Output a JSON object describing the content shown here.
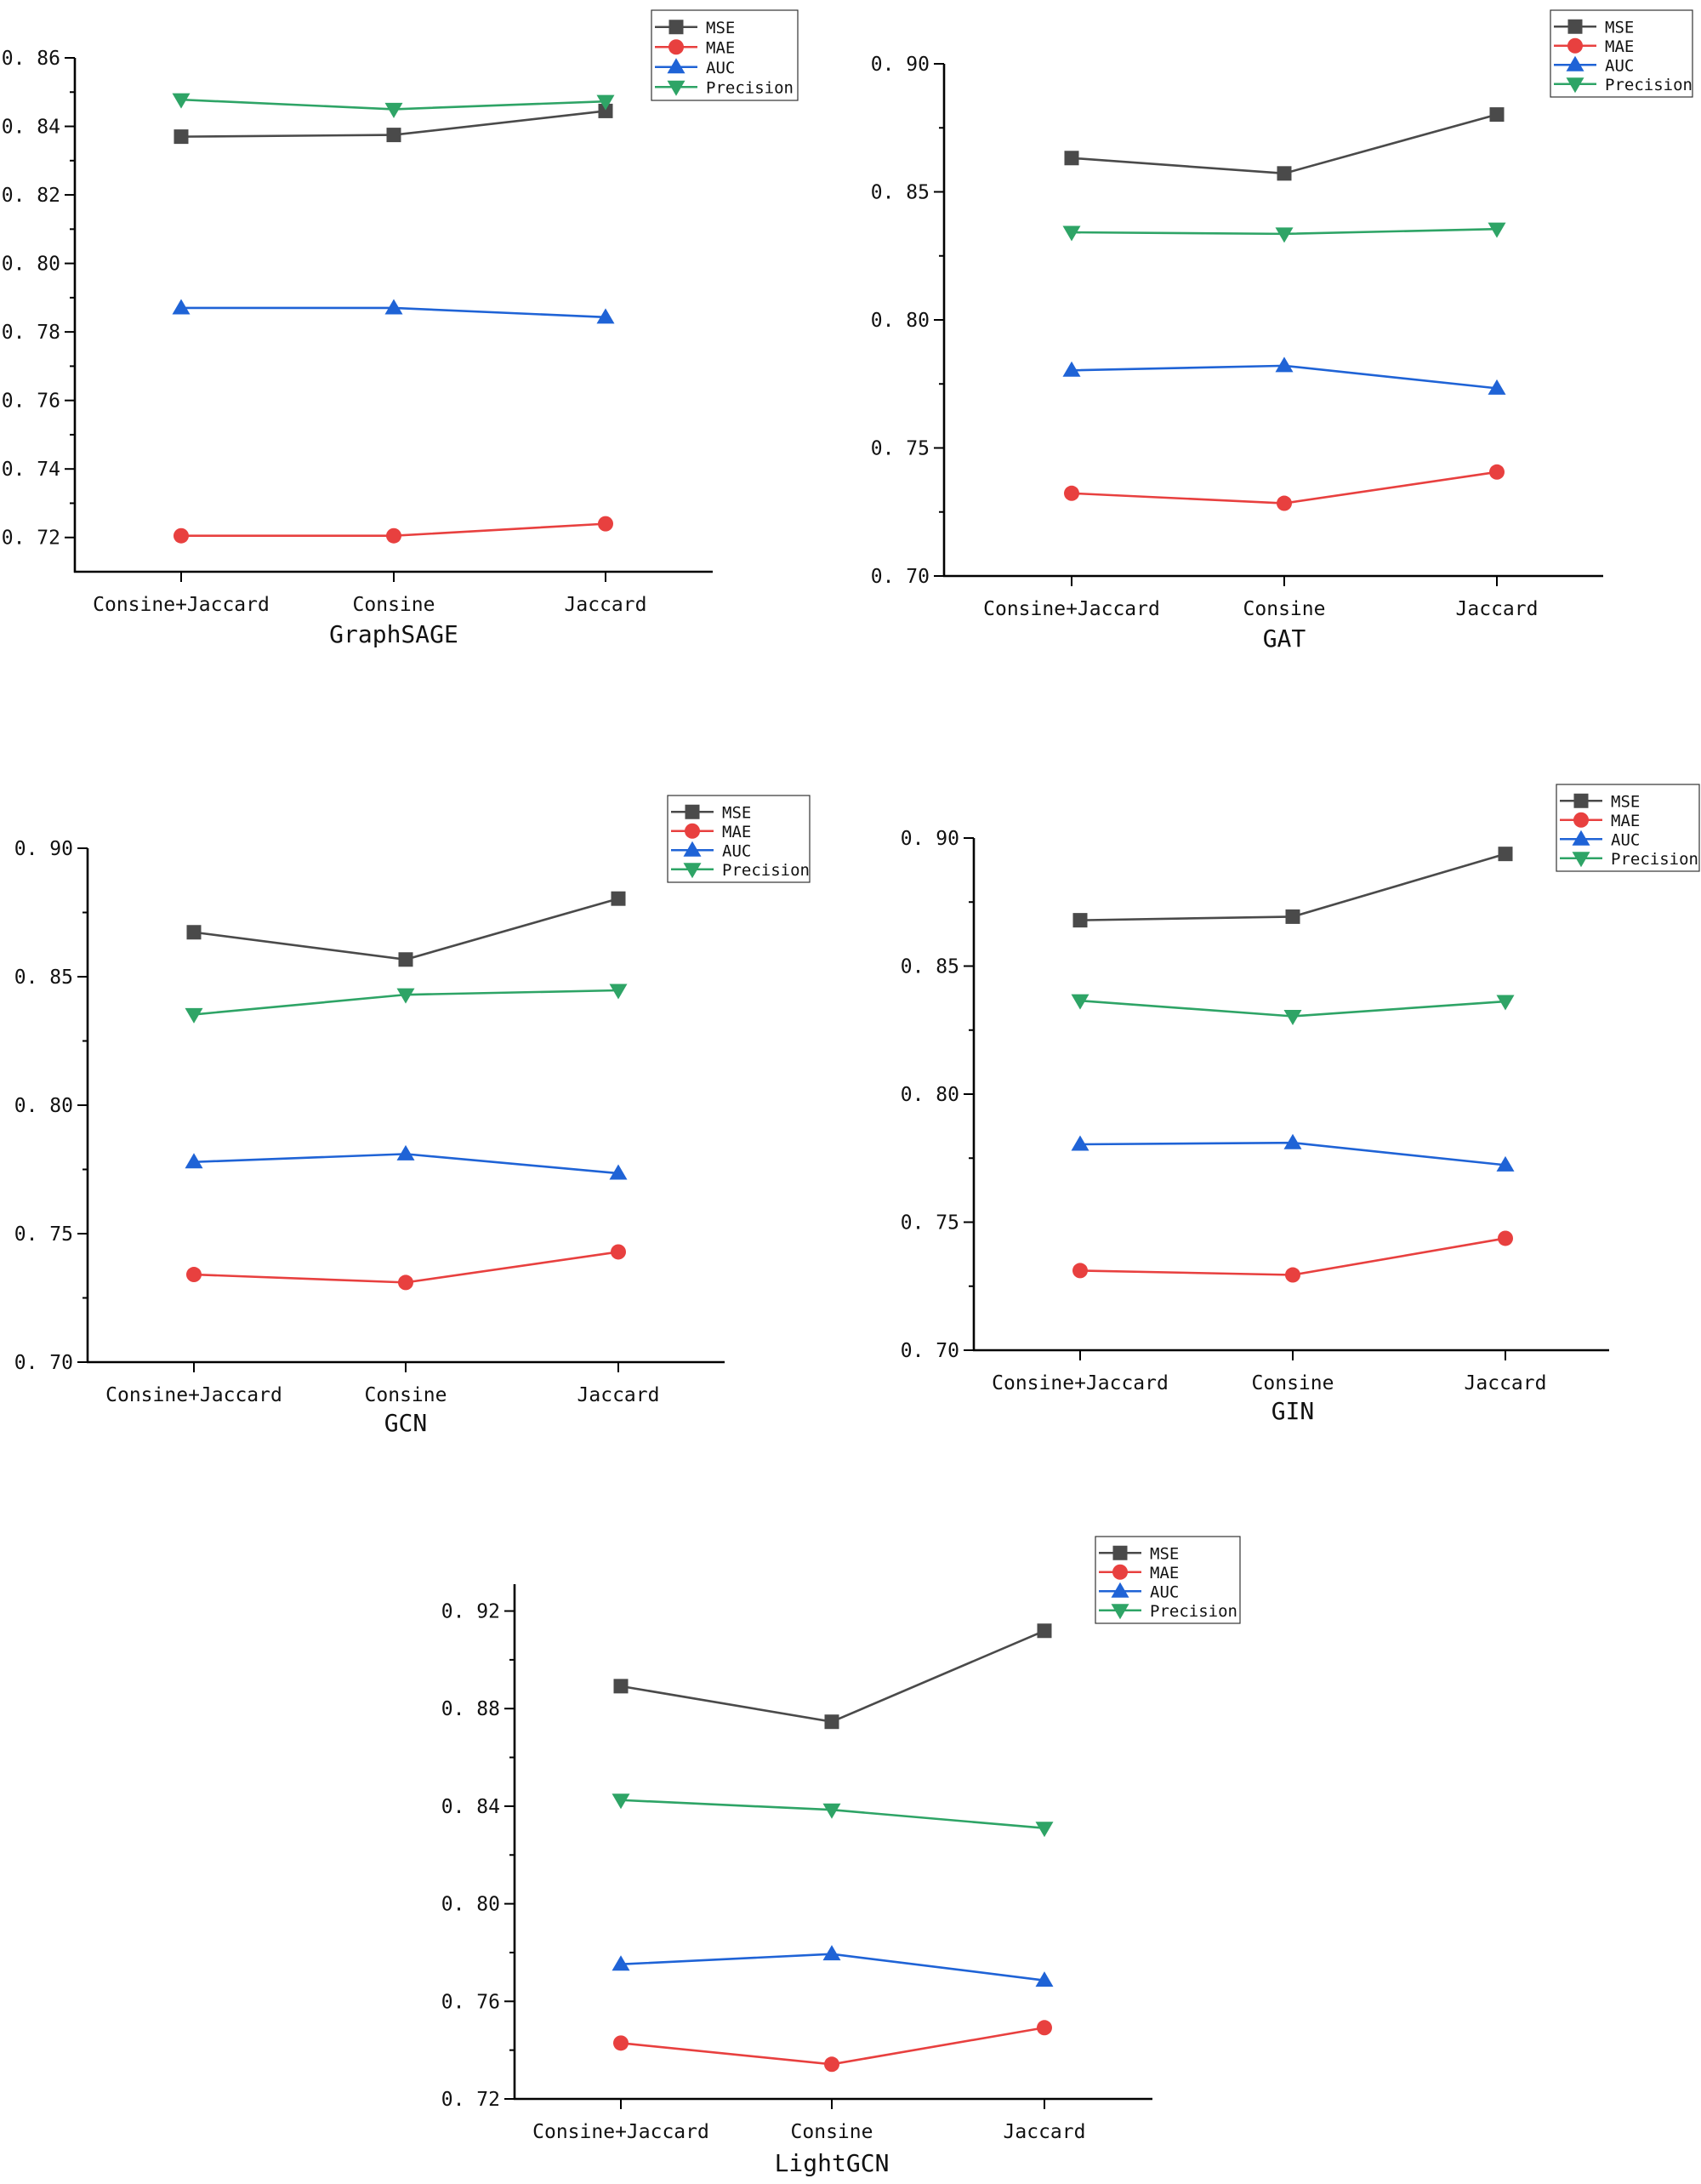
{
  "chart_data": [
    {
      "type": "line",
      "title": "GraphSAGE",
      "xlabel": "GraphSAGE",
      "ylabel": "",
      "categories": [
        "Consine+Jaccard",
        "Consine",
        "Jaccard"
      ],
      "ylim": [
        0.71,
        0.86
      ],
      "yticks": [
        0.72,
        0.74,
        0.76,
        0.78,
        0.8,
        0.82,
        0.84,
        0.86
      ],
      "ytick_labels": [
        "0. 72",
        "0. 74",
        "0. 76",
        "0. 78",
        "0. 80",
        "0. 82",
        "0. 84",
        "0. 86"
      ],
      "minor_ticks": true,
      "grid": false,
      "legend_position": "top-right",
      "series": [
        {
          "name": "MSE",
          "marker": "square",
          "color": "#4a4a4a",
          "values": [
            0.837,
            0.8375,
            0.8445
          ]
        },
        {
          "name": "MAE",
          "marker": "circle",
          "color": "#e8403f",
          "values": [
            0.7205,
            0.7205,
            0.724
          ]
        },
        {
          "name": "AUC",
          "marker": "triangle-up",
          "color": "#1f63d6",
          "values": [
            0.787,
            0.787,
            0.7843
          ]
        },
        {
          "name": "Precision",
          "marker": "triangle-down",
          "color": "#2ea466",
          "values": [
            0.8478,
            0.845,
            0.8473
          ]
        }
      ]
    },
    {
      "type": "line",
      "title": "GAT",
      "xlabel": "GAT",
      "ylabel": "",
      "categories": [
        "Consine+Jaccard",
        "Consine",
        "Jaccard"
      ],
      "ylim": [
        0.7,
        0.9
      ],
      "yticks": [
        0.7,
        0.75,
        0.8,
        0.85,
        0.9
      ],
      "ytick_labels": [
        "0. 70",
        "0. 75",
        "0. 80",
        "0. 85",
        "0. 90"
      ],
      "minor_ticks": true,
      "grid": false,
      "legend_position": "top-right",
      "series": [
        {
          "name": "MSE",
          "marker": "square",
          "color": "#4a4a4a",
          "values": [
            0.8632,
            0.8572,
            0.8802
          ]
        },
        {
          "name": "MAE",
          "marker": "circle",
          "color": "#e8403f",
          "values": [
            0.7323,
            0.7284,
            0.7406
          ]
        },
        {
          "name": "AUC",
          "marker": "triangle-up",
          "color": "#1f63d6",
          "values": [
            0.7803,
            0.7821,
            0.7733
          ]
        },
        {
          "name": "Precision",
          "marker": "triangle-down",
          "color": "#2ea466",
          "values": [
            0.8342,
            0.8336,
            0.8355
          ]
        }
      ]
    },
    {
      "type": "line",
      "title": "GCN",
      "xlabel": "GCN",
      "ylabel": "",
      "categories": [
        "Consine+Jaccard",
        "Consine",
        "Jaccard"
      ],
      "ylim": [
        0.7,
        0.9
      ],
      "yticks": [
        0.7,
        0.75,
        0.8,
        0.85,
        0.9
      ],
      "ytick_labels": [
        "0. 70",
        "0. 75",
        "0. 80",
        "0. 85",
        "0. 90"
      ],
      "minor_ticks": true,
      "grid": false,
      "legend_position": "top-right",
      "series": [
        {
          "name": "MSE",
          "marker": "square",
          "color": "#4a4a4a",
          "values": [
            0.8673,
            0.8567,
            0.8804
          ]
        },
        {
          "name": "MAE",
          "marker": "circle",
          "color": "#e8403f",
          "values": [
            0.7341,
            0.731,
            0.7429
          ]
        },
        {
          "name": "AUC",
          "marker": "triangle-up",
          "color": "#1f63d6",
          "values": [
            0.7779,
            0.781,
            0.7735
          ]
        },
        {
          "name": "Precision",
          "marker": "triangle-down",
          "color": "#2ea466",
          "values": [
            0.8353,
            0.843,
            0.8447
          ]
        }
      ]
    },
    {
      "type": "line",
      "title": "GIN",
      "xlabel": "GIN",
      "ylabel": "",
      "categories": [
        "Consine+Jaccard",
        "Consine",
        "Jaccard"
      ],
      "ylim": [
        0.7,
        0.9
      ],
      "yticks": [
        0.7,
        0.75,
        0.8,
        0.85,
        0.9
      ],
      "ytick_labels": [
        "0. 70",
        "0. 75",
        "0. 80",
        "0. 85",
        "0. 90"
      ],
      "minor_ticks": true,
      "grid": false,
      "legend_position": "top-right",
      "series": [
        {
          "name": "MSE",
          "marker": "square",
          "color": "#4a4a4a",
          "values": [
            0.8679,
            0.8693,
            0.8938
          ]
        },
        {
          "name": "MAE",
          "marker": "circle",
          "color": "#e8403f",
          "values": [
            0.7311,
            0.7294,
            0.7437
          ]
        },
        {
          "name": "AUC",
          "marker": "triangle-up",
          "color": "#1f63d6",
          "values": [
            0.7804,
            0.781,
            0.7723
          ]
        },
        {
          "name": "Precision",
          "marker": "triangle-down",
          "color": "#2ea466",
          "values": [
            0.8365,
            0.8304,
            0.8362
          ]
        }
      ]
    },
    {
      "type": "line",
      "title": "LightGCN",
      "xlabel": "LightGCN",
      "ylabel": "",
      "categories": [
        "Consine+Jaccard",
        "Consine",
        "Jaccard"
      ],
      "ylim": [
        0.72,
        0.931
      ],
      "yticks": [
        0.72,
        0.76,
        0.8,
        0.84,
        0.88,
        0.92
      ],
      "ytick_labels": [
        "0. 72",
        "0. 76",
        "0. 80",
        "0. 84",
        "0. 88",
        "0. 92"
      ],
      "minor_ticks": true,
      "grid": false,
      "legend_position": "top-right",
      "series": [
        {
          "name": "MSE",
          "marker": "square",
          "color": "#4a4a4a",
          "values": [
            0.8892,
            0.8746,
            0.9119
          ]
        },
        {
          "name": "MAE",
          "marker": "circle",
          "color": "#e8403f",
          "values": [
            0.7429,
            0.7342,
            0.7492
          ]
        },
        {
          "name": "AUC",
          "marker": "triangle-up",
          "color": "#1f63d6",
          "values": [
            0.7752,
            0.7794,
            0.7686
          ]
        },
        {
          "name": "Precision",
          "marker": "triangle-down",
          "color": "#2ea466",
          "values": [
            0.8425,
            0.8385,
            0.831
          ]
        }
      ]
    }
  ]
}
